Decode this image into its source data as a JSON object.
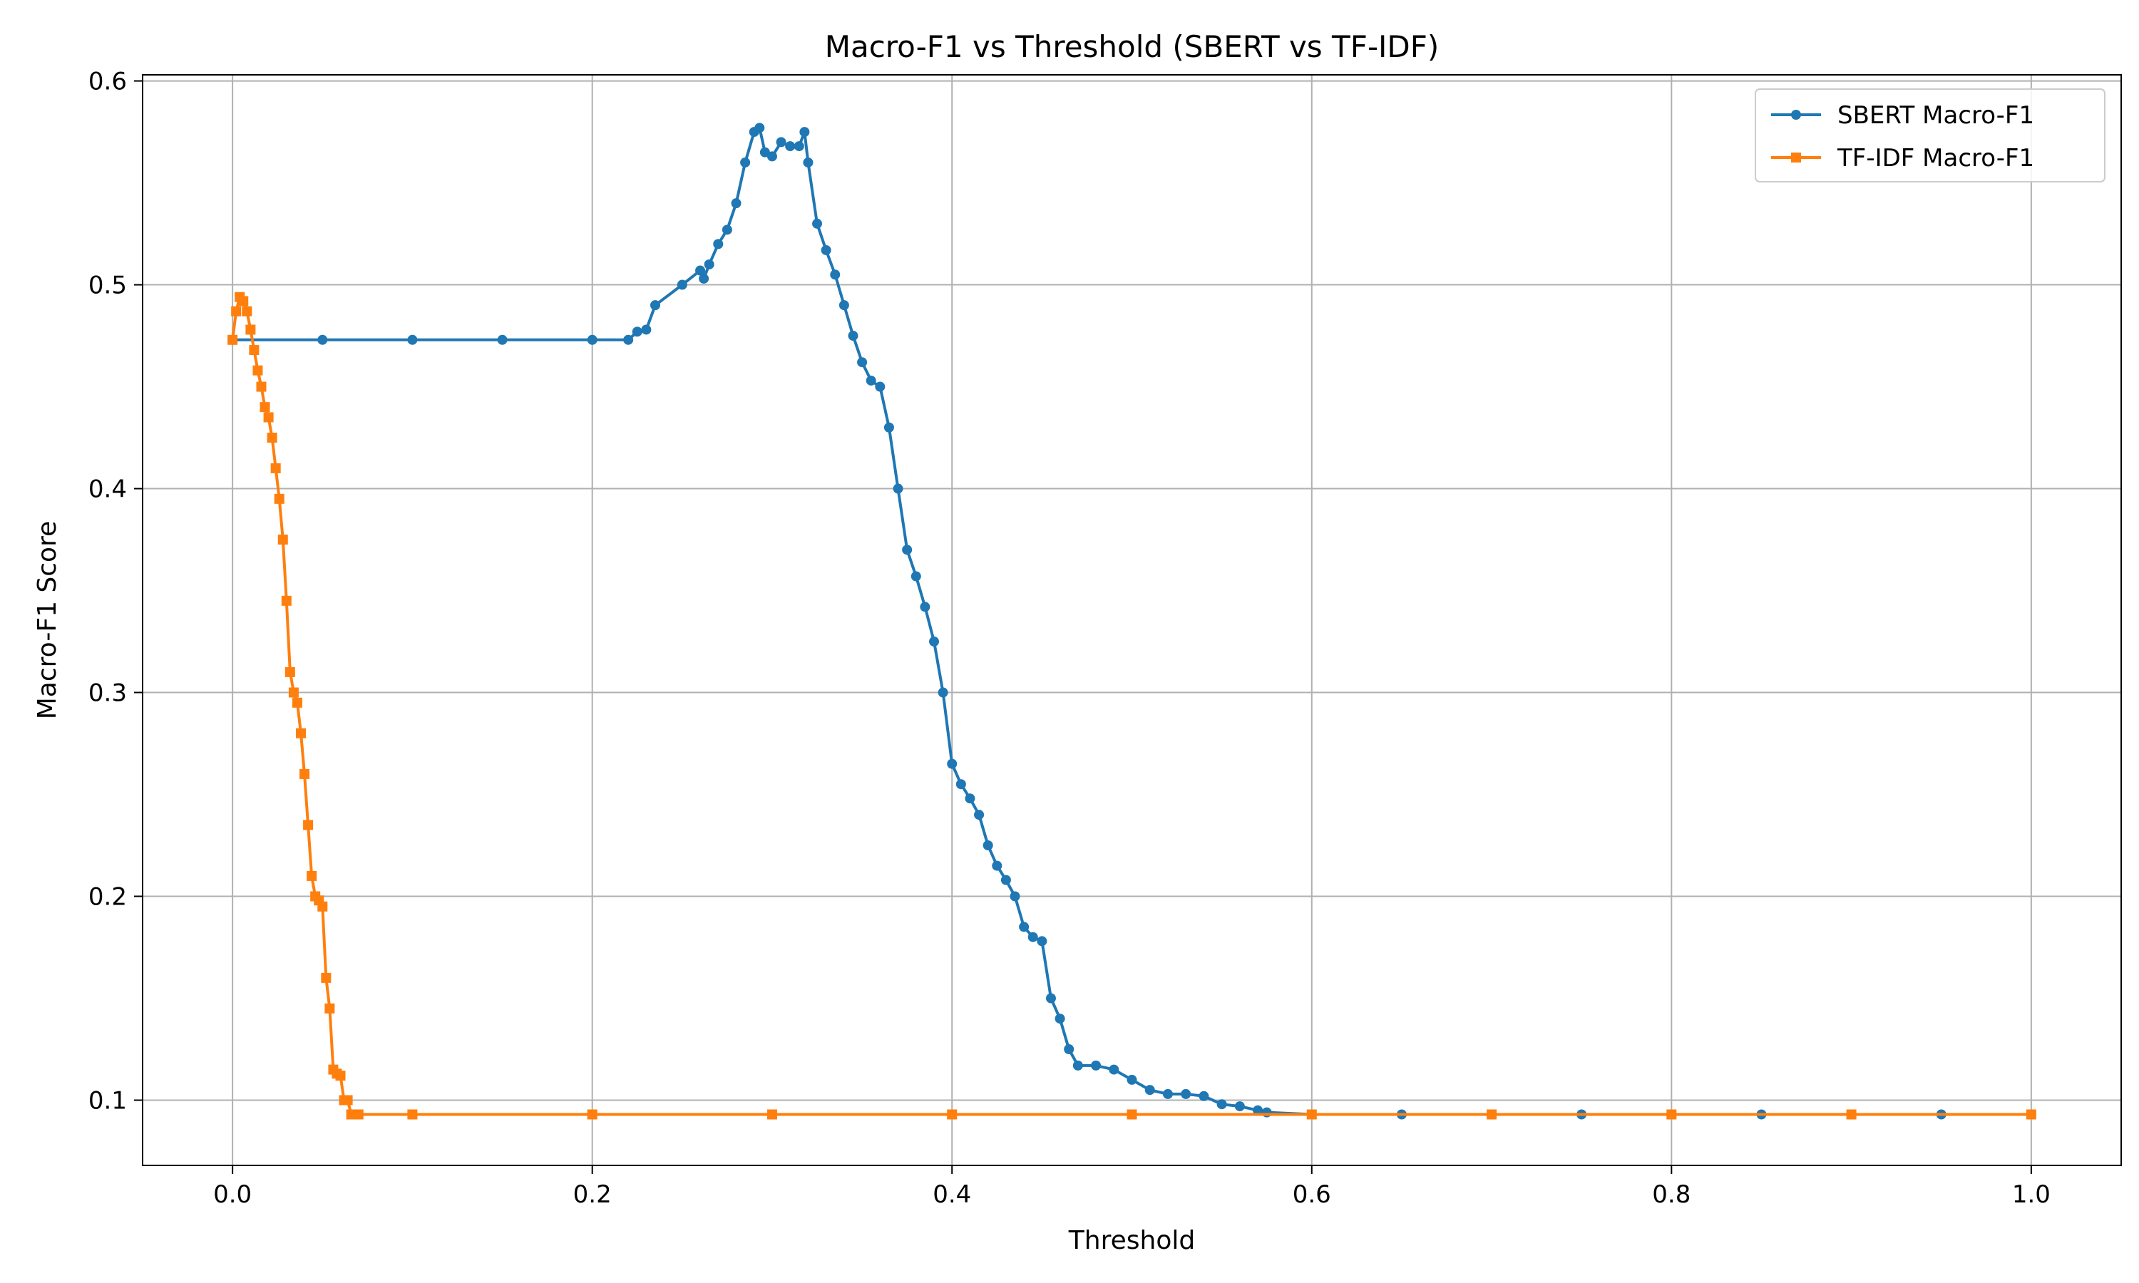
{
  "colors": {
    "sbert": "#1f77b4",
    "tfidf": "#ff7f0e",
    "grid": "#b0b0b0",
    "axes": "#000000",
    "legend_border": "#cccccc",
    "background": "#ffffff"
  },
  "chart_data": {
    "type": "line",
    "title": "Macro-F1 vs Threshold (SBERT vs TF-IDF)",
    "xlabel": "Threshold",
    "ylabel": "Macro-F1 Score",
    "xlim": [
      -0.05,
      1.05
    ],
    "ylim": [
      0.068,
      0.603
    ],
    "xticks": [
      0.0,
      0.2,
      0.4,
      0.6,
      0.8,
      1.0
    ],
    "xtick_labels": [
      "0.0",
      "0.2",
      "0.4",
      "0.6",
      "0.8",
      "1.0"
    ],
    "yticks": [
      0.1,
      0.2,
      0.3,
      0.4,
      0.5,
      0.6
    ],
    "ytick_labels": [
      "0.1",
      "0.2",
      "0.3",
      "0.4",
      "0.5",
      "0.6"
    ],
    "grid": true,
    "legend_position": "top-right",
    "series": [
      {
        "name": "SBERT Macro-F1",
        "marker": "circle",
        "x": [
          0.0,
          0.05,
          0.1,
          0.15,
          0.2,
          0.22,
          0.225,
          0.23,
          0.235,
          0.25,
          0.26,
          0.262,
          0.265,
          0.27,
          0.275,
          0.28,
          0.285,
          0.29,
          0.293,
          0.296,
          0.3,
          0.305,
          0.31,
          0.315,
          0.318,
          0.32,
          0.325,
          0.33,
          0.335,
          0.34,
          0.345,
          0.35,
          0.355,
          0.36,
          0.365,
          0.37,
          0.375,
          0.38,
          0.385,
          0.39,
          0.395,
          0.4,
          0.405,
          0.41,
          0.415,
          0.42,
          0.425,
          0.43,
          0.435,
          0.44,
          0.445,
          0.45,
          0.455,
          0.46,
          0.465,
          0.47,
          0.48,
          0.49,
          0.5,
          0.51,
          0.52,
          0.53,
          0.54,
          0.55,
          0.56,
          0.57,
          0.575,
          0.6,
          0.65,
          0.7,
          0.75,
          0.8,
          0.85,
          0.9,
          0.95,
          1.0
        ],
        "y": [
          0.473,
          0.473,
          0.473,
          0.473,
          0.473,
          0.473,
          0.477,
          0.478,
          0.49,
          0.5,
          0.507,
          0.503,
          0.51,
          0.52,
          0.527,
          0.54,
          0.56,
          0.575,
          0.577,
          0.565,
          0.563,
          0.57,
          0.568,
          0.568,
          0.575,
          0.56,
          0.53,
          0.517,
          0.505,
          0.49,
          0.475,
          0.462,
          0.453,
          0.45,
          0.43,
          0.4,
          0.37,
          0.357,
          0.342,
          0.325,
          0.3,
          0.265,
          0.255,
          0.248,
          0.24,
          0.225,
          0.215,
          0.208,
          0.2,
          0.185,
          0.18,
          0.178,
          0.15,
          0.14,
          0.125,
          0.117,
          0.117,
          0.115,
          0.11,
          0.105,
          0.103,
          0.103,
          0.102,
          0.098,
          0.097,
          0.095,
          0.094,
          0.093,
          0.093,
          0.093,
          0.093,
          0.093,
          0.093,
          0.093,
          0.093,
          0.093
        ]
      },
      {
        "name": "TF-IDF Macro-F1",
        "marker": "square",
        "x": [
          0.0,
          0.002,
          0.004,
          0.006,
          0.008,
          0.01,
          0.012,
          0.014,
          0.016,
          0.018,
          0.02,
          0.022,
          0.024,
          0.026,
          0.028,
          0.03,
          0.032,
          0.034,
          0.036,
          0.038,
          0.04,
          0.042,
          0.044,
          0.046,
          0.048,
          0.05,
          0.052,
          0.054,
          0.056,
          0.058,
          0.06,
          0.062,
          0.064,
          0.066,
          0.068,
          0.07,
          0.1,
          0.2,
          0.3,
          0.4,
          0.5,
          0.6,
          0.7,
          0.8,
          0.9,
          1.0
        ],
        "y": [
          0.473,
          0.487,
          0.494,
          0.492,
          0.487,
          0.478,
          0.468,
          0.458,
          0.45,
          0.44,
          0.435,
          0.425,
          0.41,
          0.395,
          0.375,
          0.345,
          0.31,
          0.3,
          0.295,
          0.28,
          0.26,
          0.235,
          0.21,
          0.2,
          0.198,
          0.195,
          0.16,
          0.145,
          0.115,
          0.113,
          0.112,
          0.1,
          0.1,
          0.093,
          0.093,
          0.093,
          0.093,
          0.093,
          0.093,
          0.093,
          0.093,
          0.093,
          0.093,
          0.093,
          0.093,
          0.093
        ]
      }
    ]
  }
}
